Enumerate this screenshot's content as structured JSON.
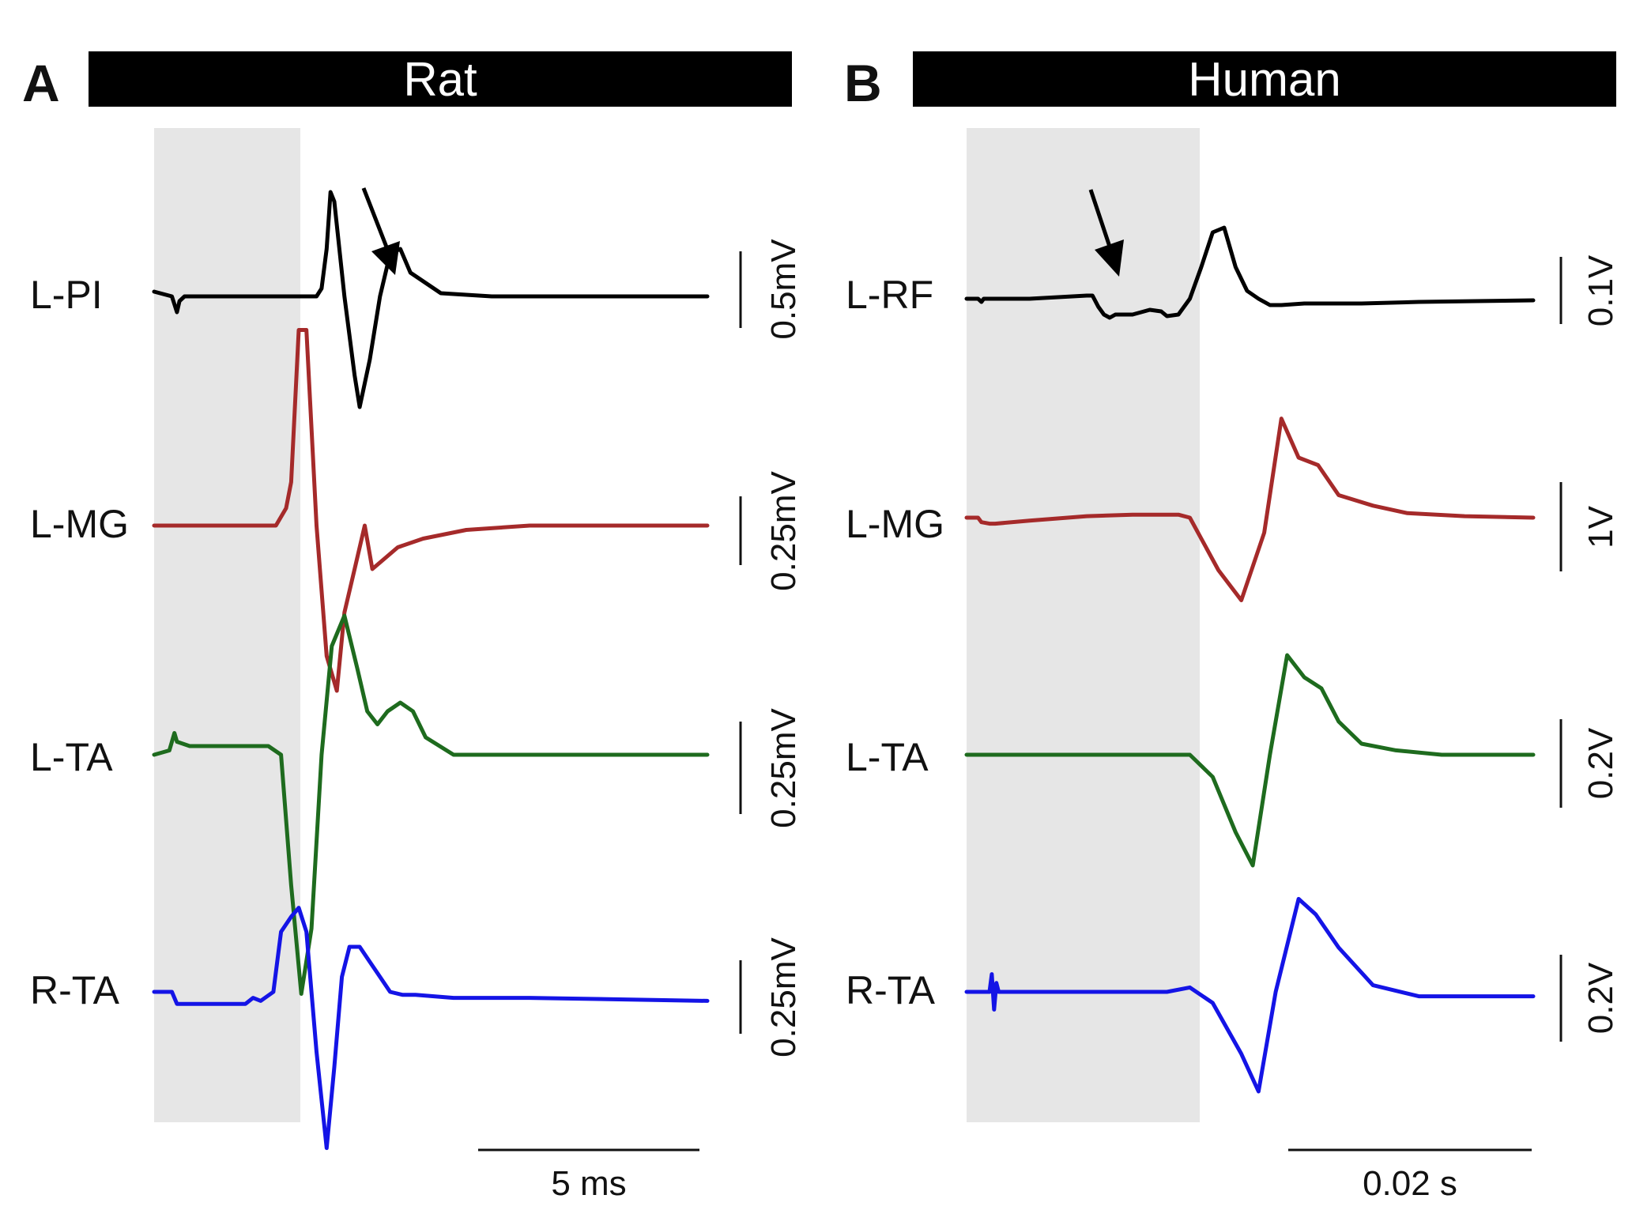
{
  "chart_data": [
    {
      "type": "line",
      "panel_label": "A",
      "title": "Rat",
      "xlabel": "",
      "ylabel": "",
      "time_scalebar": "5 ms",
      "stim_shading": "gray",
      "arrow_on": "L-PI",
      "series": [
        {
          "name": "L-PI",
          "color": "#000000",
          "amplitude_scalebar": "0.5mV",
          "t": [
            -6.8,
            -6.1,
            -6.0,
            -5.9,
            -5.8,
            -5.6,
            -4.5,
            -2.0,
            -0.4,
            -0.2,
            0.0,
            0.15,
            0.3,
            0.7,
            1.1,
            1.3,
            1.7,
            2.1,
            2.5,
            2.9,
            3.3,
            4.5,
            6.5,
            8.0,
            12.0,
            15.0
          ],
          "v": [
            0.03,
            0.0,
            -0.05,
            -0.1,
            -0.03,
            0.0,
            0.0,
            0.0,
            0.0,
            0.05,
            0.3,
            0.66,
            0.6,
            0.0,
            -0.5,
            -0.7,
            -0.4,
            0.0,
            0.27,
            0.3,
            0.15,
            0.02,
            0.0,
            0.0,
            0.0,
            0.0
          ]
        },
        {
          "name": "L-MG",
          "color": "#a52a2a",
          "amplitude_scalebar": "0.25mV",
          "t": [
            -6.8,
            -4.5,
            -3.5,
            -2.0,
            -1.6,
            -1.4,
            -1.1,
            -0.8,
            -0.4,
            0.0,
            0.4,
            0.7,
            1.1,
            1.5,
            1.8,
            2.2,
            2.8,
            3.8,
            5.5,
            8.0,
            12.0,
            15.0
          ],
          "v": [
            0.0,
            0.0,
            0.0,
            0.0,
            0.04,
            0.1,
            0.45,
            0.45,
            0.0,
            -0.3,
            -0.38,
            -0.2,
            -0.1,
            0.0,
            -0.1,
            -0.08,
            -0.05,
            -0.03,
            -0.01,
            0.0,
            0.0,
            0.0
          ]
        },
        {
          "name": "L-TA",
          "color": "#1e6b1e",
          "amplitude_scalebar": "0.25mV",
          "t": [
            -6.8,
            -6.2,
            -6.0,
            -5.9,
            -5.4,
            -4.5,
            -2.3,
            -1.8,
            -1.4,
            -1.0,
            -0.6,
            -0.2,
            0.2,
            0.7,
            1.2,
            1.6,
            2.0,
            2.4,
            2.9,
            3.4,
            3.9,
            5.0,
            7.0,
            12.0,
            15.0
          ],
          "v": [
            0.0,
            0.01,
            0.05,
            0.03,
            0.02,
            0.02,
            0.02,
            0.0,
            -0.3,
            -0.55,
            -0.4,
            0.0,
            0.25,
            0.32,
            0.2,
            0.1,
            0.07,
            0.1,
            0.12,
            0.1,
            0.04,
            0.0,
            0.0,
            0.0,
            0.0
          ]
        },
        {
          "name": "R-TA",
          "color": "#1414e6",
          "amplitude_scalebar": "0.25mV",
          "t": [
            -6.8,
            -6.1,
            -5.9,
            -5.4,
            -3.2,
            -2.9,
            -2.6,
            -2.1,
            -1.8,
            -1.4,
            -1.1,
            -0.8,
            -0.4,
            0.0,
            0.3,
            0.6,
            0.9,
            1.3,
            1.7,
            2.1,
            2.5,
            3.0,
            3.5,
            5.0,
            8.0,
            15.0
          ],
          "v": [
            0.0,
            0.0,
            -0.04,
            -0.04,
            -0.04,
            -0.02,
            -0.03,
            0.0,
            0.2,
            0.25,
            0.28,
            0.2,
            -0.2,
            -0.52,
            -0.25,
            0.05,
            0.15,
            0.15,
            0.1,
            0.05,
            0.0,
            -0.01,
            -0.01,
            -0.02,
            -0.02,
            -0.03
          ]
        }
      ]
    },
    {
      "type": "line",
      "panel_label": "B",
      "title": "Human",
      "xlabel": "",
      "ylabel": "",
      "time_scalebar": "0.02 s",
      "stim_shading": "gray",
      "arrow_on": "L-RF",
      "series": [
        {
          "name": "L-RF",
          "color": "#000000",
          "amplitude_scalebar": "0.1V",
          "t": [
            -0.0195,
            -0.0185,
            -0.0182,
            -0.018,
            -0.0175,
            -0.014,
            -0.009,
            -0.0085,
            -0.008,
            -0.0075,
            -0.007,
            -0.0065,
            -0.005,
            -0.0035,
            -0.0025,
            -0.002,
            -0.001,
            0.0,
            0.001,
            0.002,
            0.003,
            0.004,
            0.005,
            0.006,
            0.007,
            0.008,
            0.01,
            0.015,
            0.02,
            0.025,
            0.03
          ],
          "v": [
            0.0,
            0.0,
            -0.02,
            0.0,
            0.0,
            0.0,
            0.02,
            0.02,
            -0.05,
            -0.1,
            -0.12,
            -0.1,
            -0.1,
            -0.07,
            -0.08,
            -0.11,
            -0.1,
            0.0,
            0.2,
            0.42,
            0.45,
            0.2,
            0.05,
            0.0,
            -0.04,
            -0.04,
            -0.03,
            -0.03,
            -0.02,
            -0.015,
            -0.01
          ]
        },
        {
          "name": "L-MG",
          "color": "#a52a2a",
          "amplitude_scalebar": "1V",
          "t": [
            -0.0195,
            -0.0185,
            -0.0182,
            -0.0175,
            -0.017,
            -0.014,
            -0.009,
            -0.005,
            -0.001,
            0.0,
            0.0025,
            0.0045,
            0.0065,
            0.008,
            0.0095,
            0.0112,
            0.013,
            0.016,
            0.019,
            0.024,
            0.03
          ],
          "v": [
            0.0,
            0.0,
            -0.03,
            -0.04,
            -0.04,
            -0.02,
            0.01,
            0.02,
            0.02,
            0.0,
            -0.35,
            -0.55,
            -0.1,
            0.66,
            0.4,
            0.35,
            0.15,
            0.08,
            0.03,
            0.01,
            0.0
          ]
        },
        {
          "name": "L-TA",
          "color": "#1e6b1e",
          "amplitude_scalebar": "0.2V",
          "t": [
            -0.0195,
            -0.01,
            0.0,
            0.002,
            0.004,
            0.0055,
            0.007,
            0.0085,
            0.01,
            0.0115,
            0.013,
            0.015,
            0.018,
            0.022,
            0.03
          ],
          "v": [
            0.0,
            0.0,
            0.0,
            -0.1,
            -0.35,
            -0.5,
            0.0,
            0.45,
            0.35,
            0.3,
            0.15,
            0.05,
            0.02,
            0.0,
            0.0
          ]
        },
        {
          "name": "R-TA",
          "color": "#1414e6",
          "amplitude_scalebar": "0.2V",
          "t": [
            -0.0195,
            -0.0175,
            -0.0173,
            -0.0171,
            -0.0169,
            -0.0167,
            -0.016,
            -0.01,
            -0.002,
            0.0,
            0.002,
            0.0045,
            0.006,
            0.0075,
            0.0095,
            0.011,
            0.013,
            0.016,
            0.02,
            0.025,
            0.03
          ],
          "v": [
            0.0,
            0.0,
            0.08,
            -0.08,
            0.04,
            0.0,
            0.0,
            0.0,
            0.0,
            0.02,
            -0.05,
            -0.28,
            -0.45,
            0.0,
            0.42,
            0.35,
            0.2,
            0.03,
            -0.02,
            -0.02,
            -0.02
          ]
        }
      ]
    }
  ]
}
